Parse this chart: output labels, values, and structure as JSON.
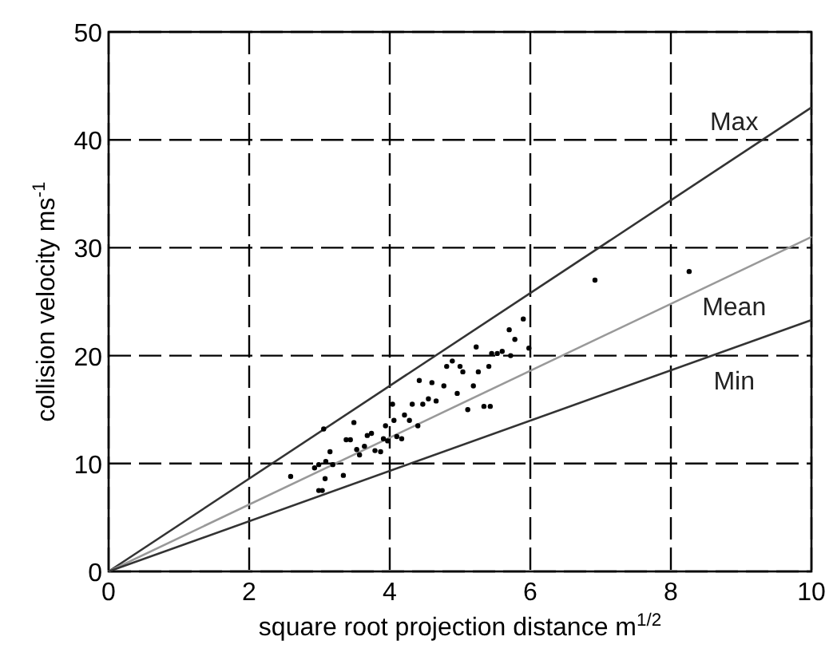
{
  "chart_data": {
    "type": "scatter",
    "xlabel": "square root projection distance m$^{1/2}$",
    "ylabel": "collision velocity ms$^{-1}$",
    "xlim": [
      0,
      10
    ],
    "ylim": [
      0,
      50
    ],
    "xticks": [
      0,
      2,
      4,
      6,
      8,
      10
    ],
    "yticks": [
      0,
      10,
      20,
      30,
      40,
      50
    ],
    "grid": true,
    "series": [
      {
        "type": "line",
        "name": "Max",
        "color": "#333333",
        "x": [
          0,
          10
        ],
        "values": [
          0,
          43
        ]
      },
      {
        "type": "line",
        "name": "Mean",
        "color": "#999999",
        "x": [
          0,
          10
        ],
        "values": [
          0,
          31
        ]
      },
      {
        "type": "line",
        "name": "Min",
        "color": "#333333",
        "x": [
          0,
          10
        ],
        "values": [
          0,
          23.3
        ]
      },
      {
        "marker": "circle",
        "color": "#000000",
        "x": [
          2.59,
          2.93,
          2.99,
          3.06,
          3.09,
          3.15,
          3.19,
          2.99,
          3.04,
          3.08,
          3.34,
          3.38,
          3.44,
          3.49,
          3.53,
          3.57,
          3.64,
          3.68,
          3.74,
          3.79,
          3.87,
          3.91,
          3.94,
          3.97,
          4.04,
          4.06,
          4.1,
          4.17,
          4.21,
          4.28,
          4.32,
          4.4,
          4.42,
          4.47,
          4.55,
          4.6,
          4.66,
          4.77,
          4.81,
          4.89,
          4.96,
          5.0,
          5.04,
          5.11,
          5.19,
          5.23,
          5.26,
          5.34,
          5.41,
          5.45,
          5.43,
          5.53,
          5.6,
          5.7,
          5.72,
          5.78,
          5.9,
          5.98,
          6.92,
          8.26
        ],
        "values": [
          8.8,
          9.6,
          9.9,
          13.2,
          10.2,
          11.1,
          9.9,
          7.5,
          7.5,
          8.6,
          8.9,
          12.2,
          12.2,
          13.8,
          11.3,
          10.8,
          11.6,
          12.6,
          12.8,
          11.2,
          11.1,
          12.3,
          13.5,
          12.1,
          15.5,
          14.0,
          12.5,
          12.3,
          14.5,
          14.0,
          15.5,
          13.5,
          17.7,
          15.5,
          16.0,
          17.5,
          15.8,
          17.2,
          19.0,
          19.5,
          16.5,
          19.0,
          18.5,
          15.0,
          17.2,
          20.8,
          18.5,
          15.3,
          19.0,
          20.2,
          15.3,
          20.2,
          20.4,
          22.4,
          20.0,
          21.5,
          23.4,
          20.7,
          27.0,
          27.8
        ]
      }
    ]
  }
}
